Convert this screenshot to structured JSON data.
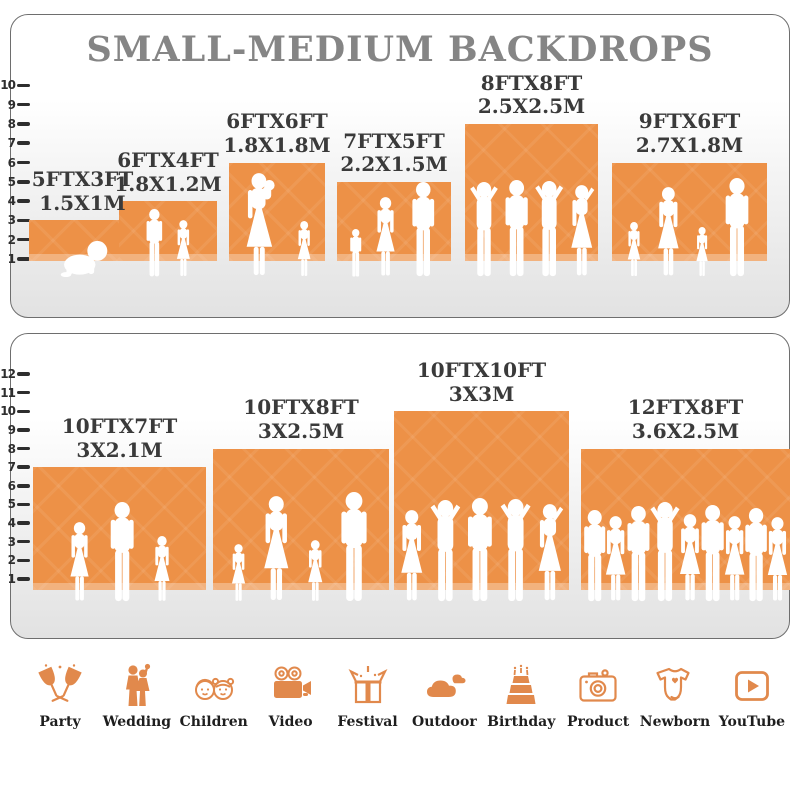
{
  "title": "SMALL-MEDIUM BACKDROPS",
  "colors": {
    "accent_orange": "#ED9147",
    "title_gray": "#858585",
    "label_dark": "#3A3A3A",
    "icon_orange": "#E1894C",
    "axis_dark": "#2E2E2E"
  },
  "panels": [
    {
      "name": "small-medium-top",
      "ticks": [
        "1",
        "2",
        "3",
        "4",
        "5",
        "6",
        "7",
        "8",
        "9",
        "10"
      ],
      "backdrops": [
        {
          "size_ft": "5FTX3FT",
          "size_m": "1.5X1M",
          "width_ft": 5,
          "height_ft": 3,
          "figures": [
            "baby"
          ]
        },
        {
          "size_ft": "6FTX4FT",
          "size_m": "1.8X1.2M",
          "width_ft": 6,
          "height_ft": 4,
          "figures": [
            "boy",
            "girl"
          ]
        },
        {
          "size_ft": "6FTX6FT",
          "size_m": "1.8X1.8M",
          "width_ft": 6,
          "height_ft": 6,
          "figures": [
            "mother",
            "girl"
          ]
        },
        {
          "size_ft": "7FTX5FT",
          "size_m": "2.2X1.5M",
          "width_ft": 7,
          "height_ft": 5,
          "figures": [
            "toddler",
            "woman",
            "man"
          ]
        },
        {
          "size_ft": "8FTX8FT",
          "size_m": "2.5X2.5M",
          "width_ft": 8,
          "height_ft": 8,
          "figures": [
            "man-pose",
            "man",
            "man-pose",
            "woman-pose"
          ]
        },
        {
          "size_ft": "9FTX6FT",
          "size_m": "2.7X1.8M",
          "width_ft": 9,
          "height_ft": 6,
          "figures": [
            "girl",
            "woman",
            "girl",
            "man"
          ]
        }
      ]
    },
    {
      "name": "small-medium-bottom",
      "ticks": [
        "1",
        "2",
        "3",
        "4",
        "5",
        "6",
        "7",
        "8",
        "9",
        "10",
        "11",
        "12"
      ],
      "backdrops": [
        {
          "size_ft": "10FTX7FT",
          "size_m": "3X2.1M",
          "width_ft": 10,
          "height_ft": 7,
          "figures": [
            "woman",
            "man",
            "girl"
          ]
        },
        {
          "size_ft": "10FTX8FT",
          "size_m": "3X2.5M",
          "width_ft": 10,
          "height_ft": 8,
          "figures": [
            "girl",
            "woman",
            "girl",
            "man"
          ]
        },
        {
          "size_ft": "10FTX10FT",
          "size_m": "3X3M",
          "width_ft": 10,
          "height_ft": 10,
          "figures": [
            "woman",
            "man-pose",
            "man",
            "man-pose",
            "woman-pose"
          ]
        },
        {
          "size_ft": "12FTX8FT",
          "size_m": "3.6X2.5M",
          "width_ft": 12,
          "height_ft": 8,
          "figures": [
            "man",
            "woman",
            "man",
            "man-pose",
            "woman",
            "man",
            "woman",
            "man",
            "woman"
          ]
        }
      ]
    }
  ],
  "categories": [
    {
      "label": "Party",
      "icon": "party-icon"
    },
    {
      "label": "Wedding",
      "icon": "wedding-icon"
    },
    {
      "label": "Children",
      "icon": "children-icon"
    },
    {
      "label": "Video",
      "icon": "video-icon"
    },
    {
      "label": "Festival",
      "icon": "festival-icon"
    },
    {
      "label": "Outdoor",
      "icon": "outdoor-icon"
    },
    {
      "label": "Birthday",
      "icon": "birthday-icon"
    },
    {
      "label": "Product",
      "icon": "product-icon"
    },
    {
      "label": "Newborn",
      "icon": "newborn-icon"
    },
    {
      "label": "YouTube",
      "icon": "youtube-icon"
    }
  ]
}
